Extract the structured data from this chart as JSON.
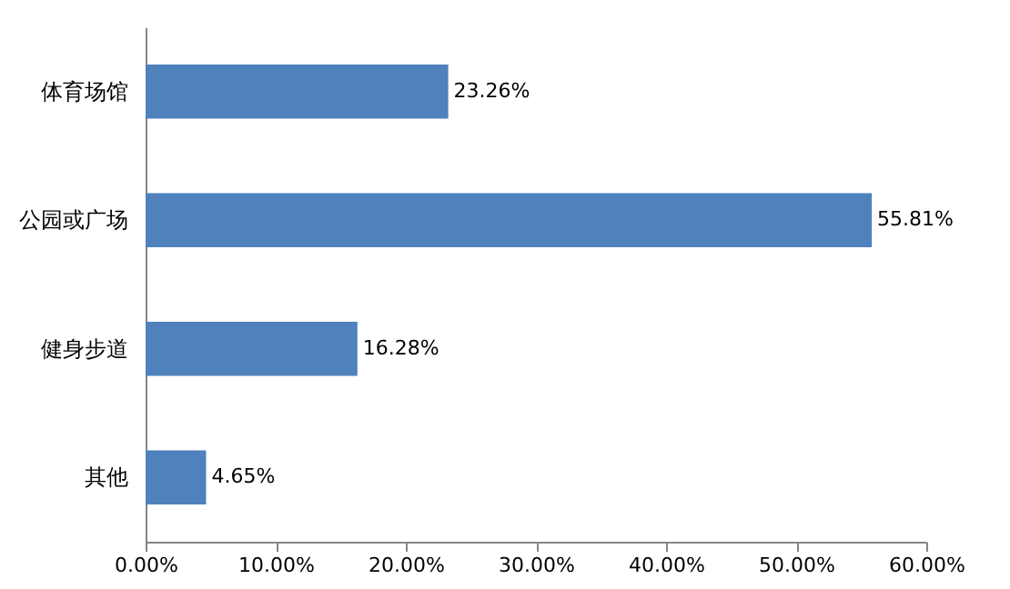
{
  "chart_data": {
    "type": "bar",
    "orientation": "horizontal",
    "categories": [
      "体育场馆",
      "公园或广场",
      "健身步道",
      "其他"
    ],
    "values": [
      23.26,
      55.81,
      16.28,
      4.65
    ],
    "value_labels": [
      "23.26%",
      "55.81%",
      "16.28%",
      "4.65%"
    ],
    "color": "#4f81bd",
    "xlim": [
      0,
      60
    ],
    "xticks": [
      {
        "value": 0,
        "label": "0.00%"
      },
      {
        "value": 10,
        "label": "10.00%"
      },
      {
        "value": 20,
        "label": "20.00%"
      },
      {
        "value": 30,
        "label": "30.00%"
      },
      {
        "value": 40,
        "label": "40.00%"
      },
      {
        "value": 50,
        "label": "50.00%"
      },
      {
        "value": 60,
        "label": "60.00%"
      }
    ],
    "grid": false
  }
}
